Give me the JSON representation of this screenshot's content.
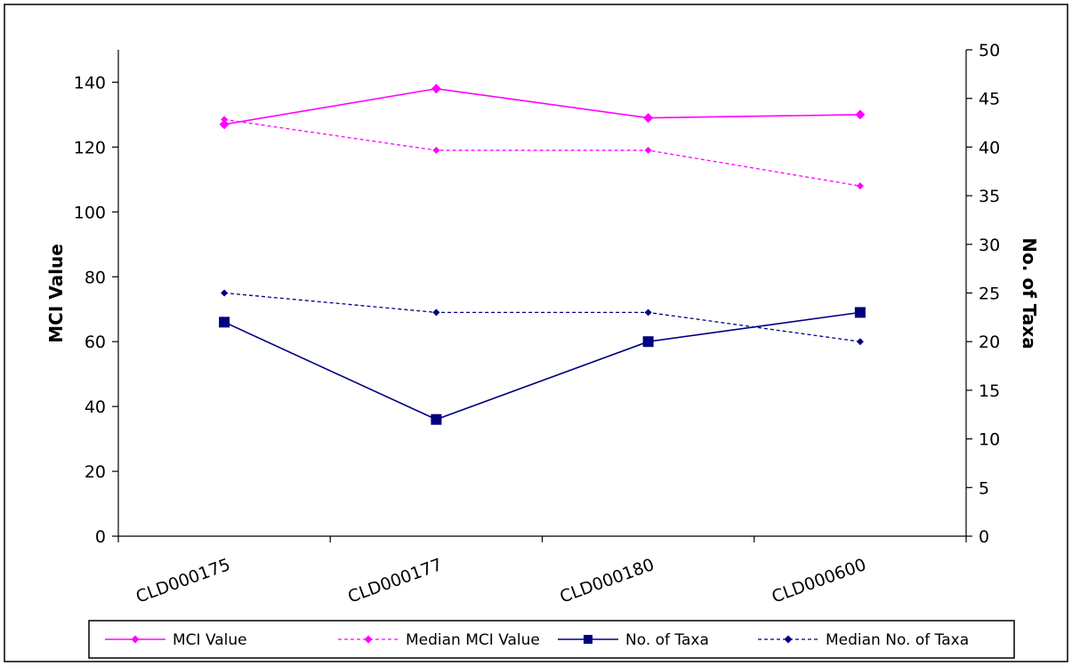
{
  "chart_data": {
    "type": "line",
    "categories": [
      "CLD000175",
      "CLD000177",
      "CLD000180",
      "CLD000600"
    ],
    "y_left": {
      "label": "MCI Value",
      "ylim": [
        0,
        150
      ],
      "ticks": [
        0,
        20,
        40,
        60,
        80,
        100,
        120,
        140
      ]
    },
    "y_right": {
      "label": "No. of Taxa",
      "ylim": [
        0,
        50
      ],
      "ticks": [
        0,
        5,
        10,
        15,
        20,
        25,
        30,
        35,
        40,
        45,
        50
      ]
    },
    "series": [
      {
        "name": "MCI Value",
        "axis": "left",
        "values": [
          127,
          138,
          129,
          130
        ],
        "color": "#ff00ff",
        "dashed": false,
        "marker": "diamond"
      },
      {
        "name": "Median MCI Value",
        "axis": "left",
        "values": [
          128.5,
          119,
          119,
          108
        ],
        "color": "#ff00ff",
        "dashed": true,
        "marker": "diamond"
      },
      {
        "name": "No. of Taxa",
        "axis": "right",
        "values": [
          22,
          12,
          20,
          23
        ],
        "color": "#000080",
        "dashed": false,
        "marker": "square"
      },
      {
        "name": "Median No. of Taxa",
        "axis": "right",
        "values": [
          25,
          23,
          23,
          20
        ],
        "color": "#000080",
        "dashed": true,
        "marker": "diamond"
      }
    ],
    "grid": false,
    "legend_position": "bottom"
  }
}
